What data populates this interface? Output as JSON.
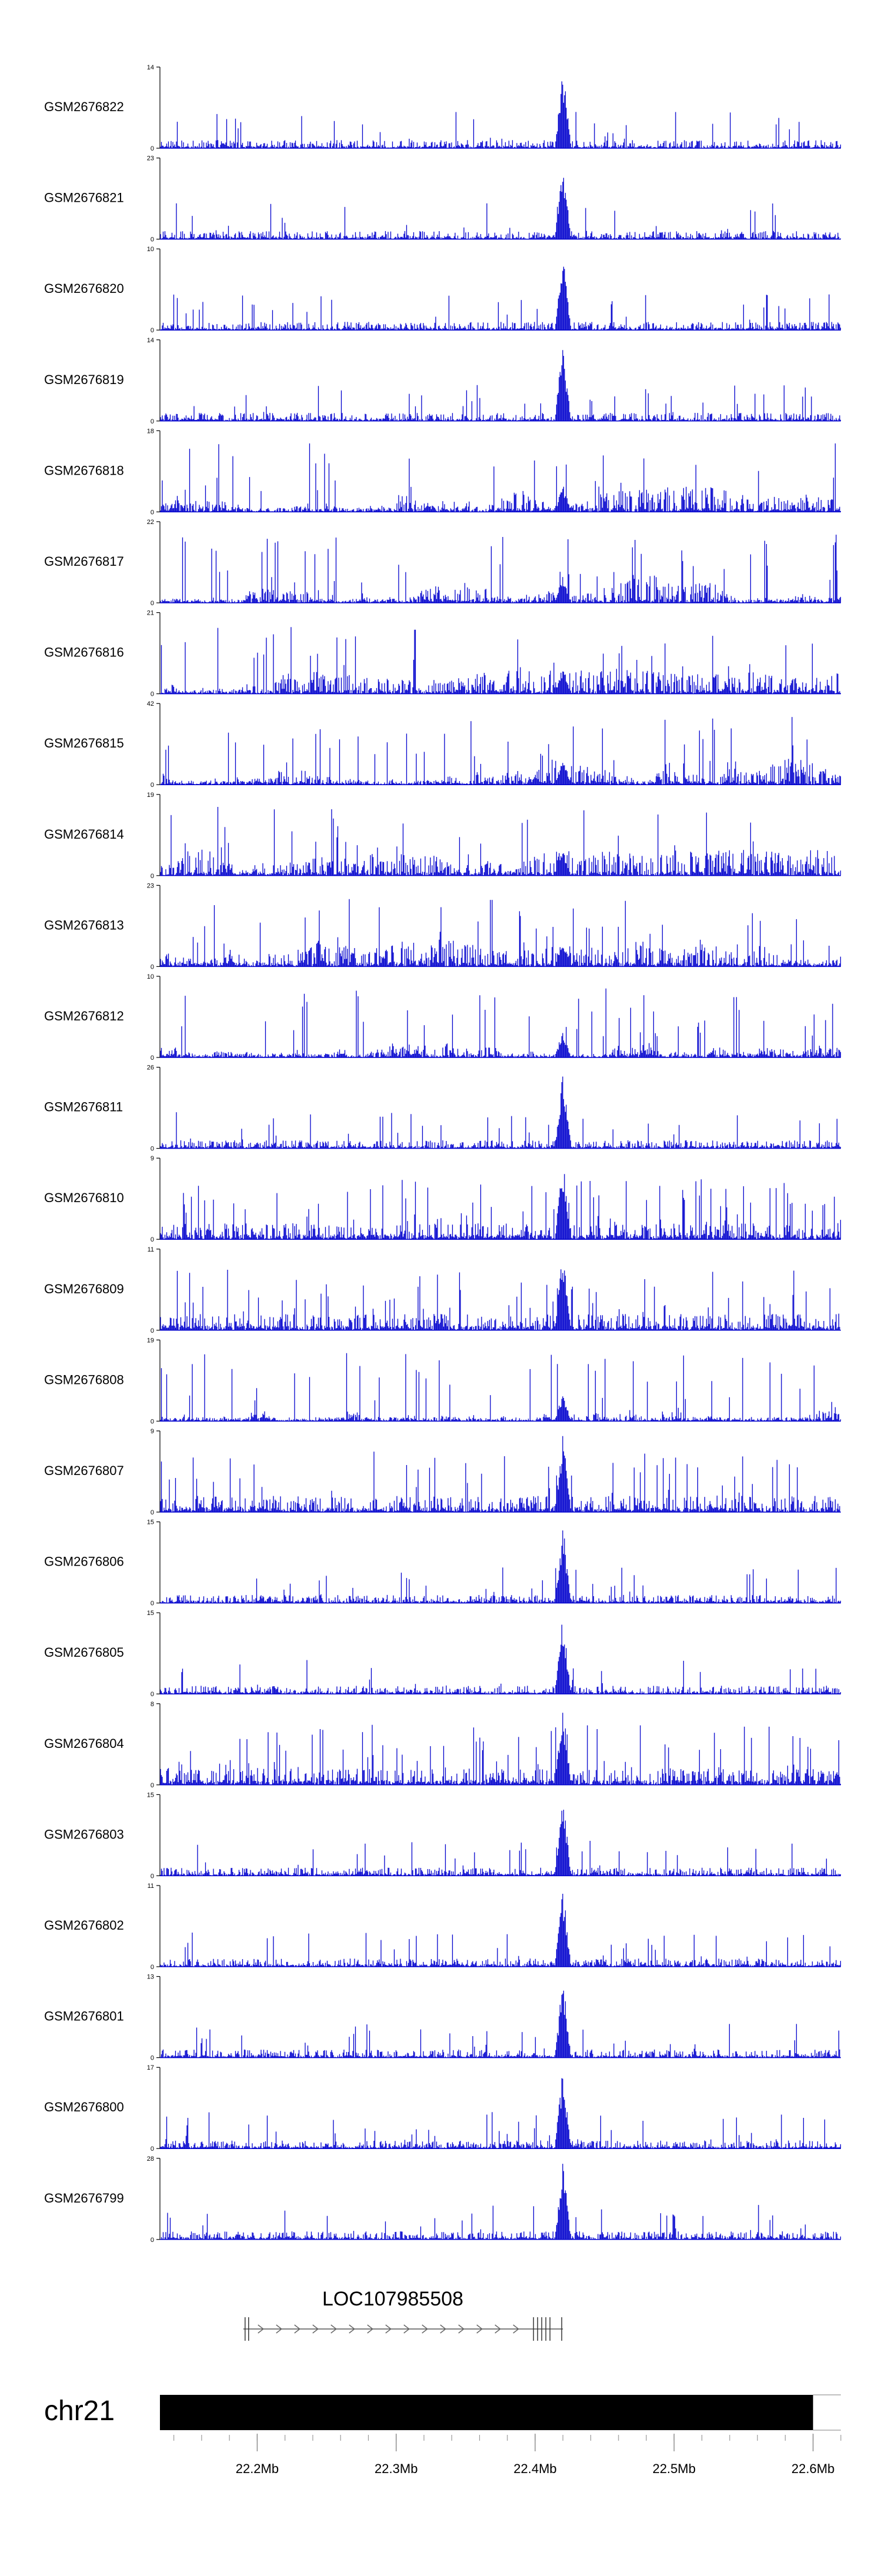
{
  "chart_data": {
    "type": "area",
    "series_color": "#0000cd",
    "x_unit": "Mb",
    "x_range": [
      22.13,
      22.62
    ],
    "peak_at": 22.42,
    "tracks": [
      {
        "name": "GSM2676822",
        "ymax": "14",
        "ymin": "0",
        "style": "peak",
        "seed": 11
      },
      {
        "name": "GSM2676821",
        "ymax": "23",
        "ymin": "0",
        "style": "peak",
        "seed": 12
      },
      {
        "name": "GSM2676820",
        "ymax": "10",
        "ymin": "0",
        "style": "peak",
        "seed": 13
      },
      {
        "name": "GSM2676819",
        "ymax": "14",
        "ymin": "0",
        "style": "peak",
        "seed": 14
      },
      {
        "name": "GSM2676818",
        "ymax": "18",
        "ymin": "0",
        "style": "noisy",
        "seed": 15
      },
      {
        "name": "GSM2676817",
        "ymax": "22",
        "ymin": "0",
        "style": "noisy",
        "seed": 16
      },
      {
        "name": "GSM2676816",
        "ymax": "21",
        "ymin": "0",
        "style": "noisy",
        "seed": 17
      },
      {
        "name": "GSM2676815",
        "ymax": "42",
        "ymin": "0",
        "style": "noisy",
        "seed": 18
      },
      {
        "name": "GSM2676814",
        "ymax": "19",
        "ymin": "0",
        "style": "noisy",
        "seed": 19
      },
      {
        "name": "GSM2676813",
        "ymax": "23",
        "ymin": "0",
        "style": "noisy",
        "seed": 20
      },
      {
        "name": "GSM2676812",
        "ymax": "10",
        "ymin": "0",
        "style": "noisy",
        "seed": 21
      },
      {
        "name": "GSM2676811",
        "ymax": "26",
        "ymin": "0",
        "style": "peak",
        "seed": 22
      },
      {
        "name": "GSM2676810",
        "ymax": "9",
        "ymin": "0",
        "style": "mixed",
        "seed": 23
      },
      {
        "name": "GSM2676809",
        "ymax": "11",
        "ymin": "0",
        "style": "mixed",
        "seed": 24
      },
      {
        "name": "GSM2676808",
        "ymax": "19",
        "ymin": "0",
        "style": "noisy",
        "seed": 25
      },
      {
        "name": "GSM2676807",
        "ymax": "9",
        "ymin": "0",
        "style": "mixed",
        "seed": 26
      },
      {
        "name": "GSM2676806",
        "ymax": "15",
        "ymin": "0",
        "style": "peak",
        "seed": 27
      },
      {
        "name": "GSM2676805",
        "ymax": "15",
        "ymin": "0",
        "style": "peak",
        "seed": 28
      },
      {
        "name": "GSM2676804",
        "ymax": "8",
        "ymin": "0",
        "style": "mixed",
        "seed": 29
      },
      {
        "name": "GSM2676803",
        "ymax": "15",
        "ymin": "0",
        "style": "peak",
        "seed": 30
      },
      {
        "name": "GSM2676802",
        "ymax": "11",
        "ymin": "0",
        "style": "peak",
        "seed": 31
      },
      {
        "name": "GSM2676801",
        "ymax": "13",
        "ymin": "0",
        "style": "peak",
        "seed": 32
      },
      {
        "name": "GSM2676800",
        "ymax": "17",
        "ymin": "0",
        "style": "peak",
        "seed": 33
      },
      {
        "name": "GSM2676799",
        "ymax": "28",
        "ymin": "0",
        "style": "peak",
        "seed": 34
      }
    ],
    "gene": {
      "name": "LOC107985508",
      "start": 22.19,
      "end": 22.42,
      "strand": "+"
    },
    "chromosome": {
      "name": "chr21",
      "filled_end": 22.6,
      "axis_ticks": [
        22.2,
        22.3,
        22.4,
        22.5,
        22.6
      ],
      "tick_suffix": "Mb"
    }
  }
}
